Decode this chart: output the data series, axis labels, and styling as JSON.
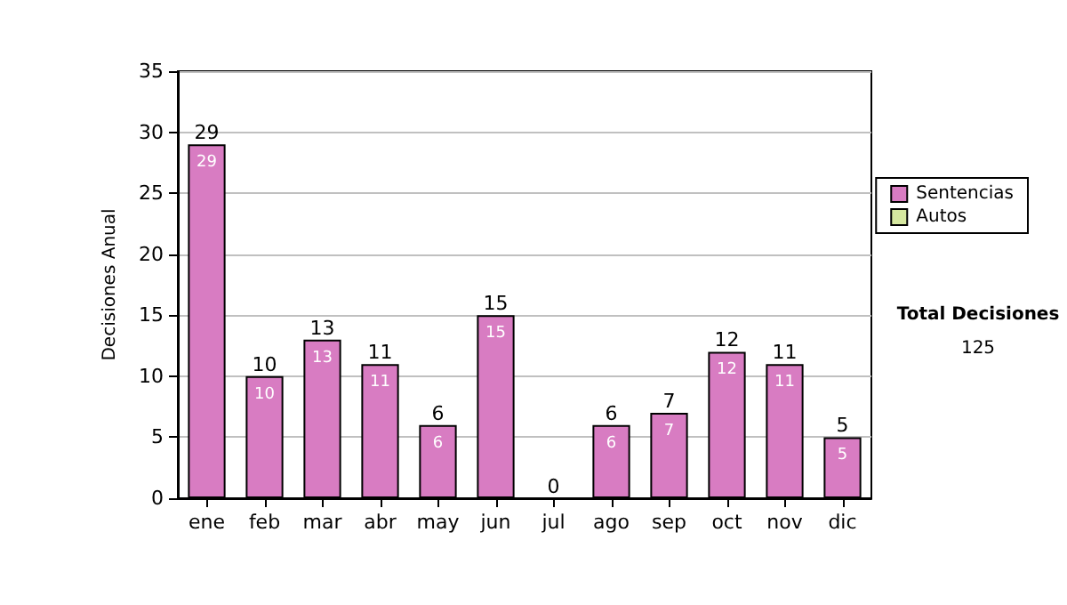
{
  "chart_data": {
    "type": "bar",
    "stacked": true,
    "ylabel": "Decisiones Anual",
    "categories": [
      "ene",
      "feb",
      "mar",
      "abr",
      "may",
      "jun",
      "jul",
      "ago",
      "sep",
      "oct",
      "nov",
      "dic"
    ],
    "series": [
      {
        "name": "Sentencias",
        "color": "#d87cc2",
        "values": [
          29,
          10,
          13,
          11,
          6,
          15,
          0,
          6,
          7,
          12,
          11,
          5
        ],
        "value_labels": [
          "29",
          "10",
          "13",
          "11",
          "6",
          "15",
          null,
          "6",
          "7",
          "12",
          "11",
          "5"
        ]
      },
      {
        "name": "Autos",
        "color": "#d6e8a0",
        "values": [
          0,
          0,
          0,
          0,
          0,
          0,
          0,
          0,
          0,
          0,
          0,
          0
        ]
      }
    ],
    "totals": [
      "29",
      "10",
      "13",
      "11",
      "6",
      "15",
      "0",
      "6",
      "7",
      "12",
      "11",
      "5"
    ],
    "ylim": [
      0,
      35
    ],
    "yticks": [
      0,
      5,
      10,
      15,
      20,
      25,
      30,
      35
    ],
    "grid": "y",
    "legend": "right",
    "annotations": [
      "Total Decisiones",
      "125"
    ]
  }
}
